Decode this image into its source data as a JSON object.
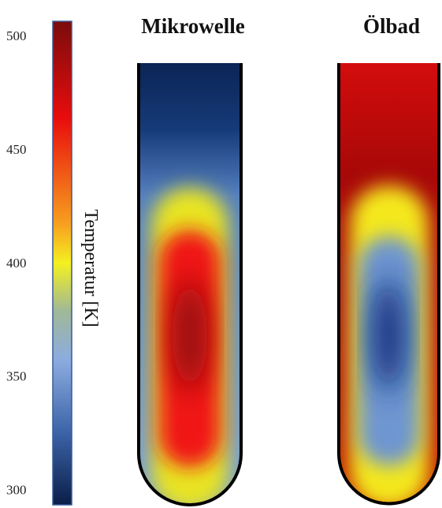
{
  "colorbar": {
    "label": "Temperatur [K]",
    "lim": [
      294,
      507
    ],
    "ticks": [
      300,
      350,
      400,
      450,
      500
    ]
  },
  "panels": [
    {
      "title": "Mikrowelle"
    },
    {
      "title": "Ölbad"
    }
  ]
}
